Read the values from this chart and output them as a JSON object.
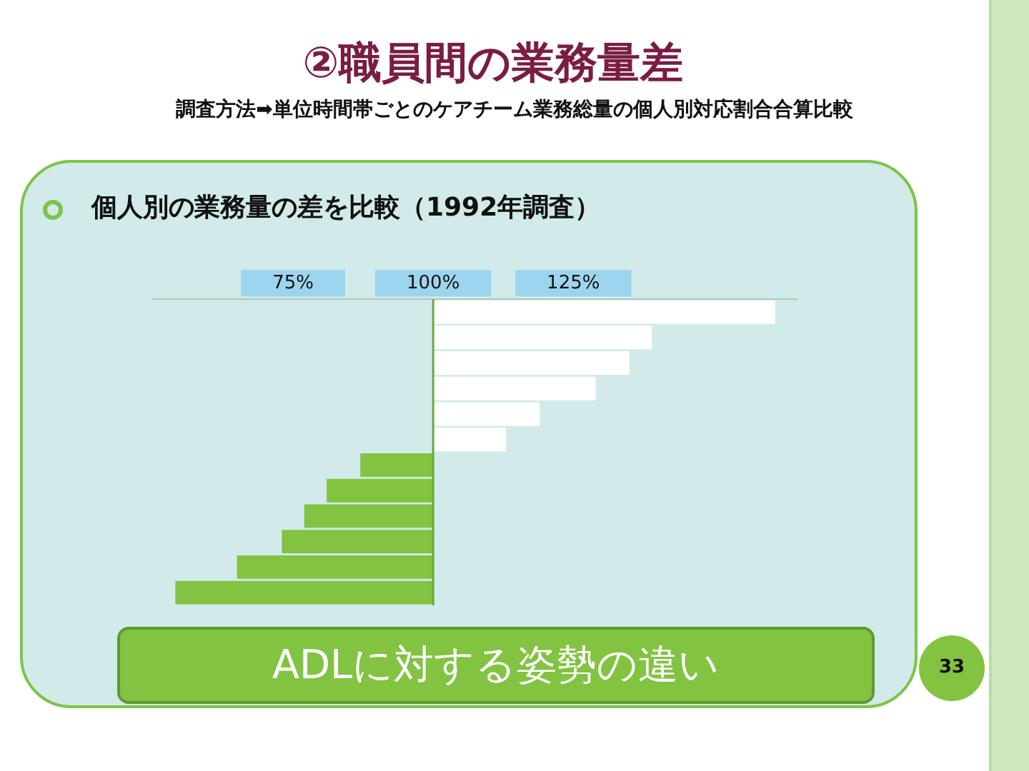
{
  "chart_data": {
    "type": "bar",
    "orientation": "horizontal",
    "title": "②職員間の業務量差",
    "subtitle": "調査方法➡単位時間帯ごとのケアチーム業務総量の個人別対応割合合算比較",
    "annotations": [
      "個人別の業務量の差を比較（1992年調査）",
      "ADLに対する姿勢の違い",
      "33"
    ],
    "categories": [
      null,
      null,
      null,
      null,
      null,
      null,
      null,
      null,
      null,
      null,
      null,
      null
    ],
    "base": [
      100,
      100,
      100,
      100,
      100,
      100,
      100,
      100,
      100,
      100,
      100,
      100
    ],
    "values": [
      61,
      39,
      35,
      29,
      19,
      13,
      -13,
      -19,
      -23,
      -27,
      -35,
      -46
    ],
    "colors": [
      "#ffffff",
      "#ffffff",
      "#ffffff",
      "#ffffff",
      "#ffffff",
      "#ffffff",
      "#82c341",
      "#82c341",
      "#82c341",
      "#82c341",
      "#82c341",
      "#82c341"
    ],
    "xlim": [
      50,
      165
    ],
    "ref_lines": [
      {
        "axis": "x",
        "value": 100,
        "color": "#6aa83a"
      }
    ],
    "xticks": [
      {
        "value": 75,
        "label": "75%"
      },
      {
        "value": 100,
        "label": "100%"
      },
      {
        "value": 125,
        "label": "125%"
      }
    ],
    "grid": false,
    "legend": false
  }
}
